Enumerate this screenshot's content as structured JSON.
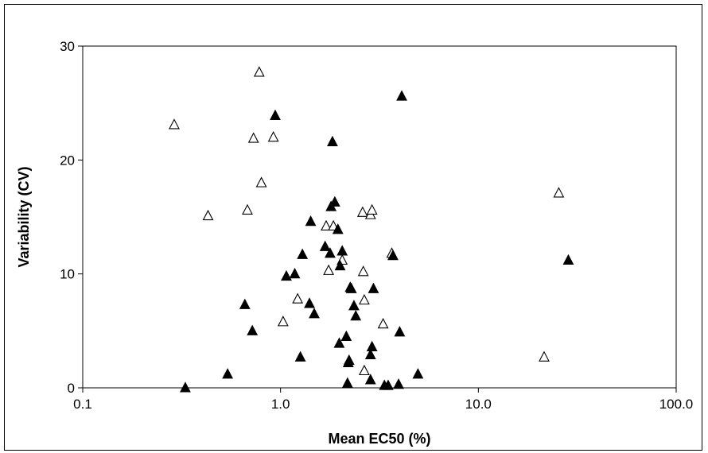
{
  "chart_data": {
    "type": "scatter",
    "title": "",
    "xlabel": "Mean EC50 (%)",
    "ylabel": "Variability (CV)",
    "x_scale": "log",
    "xlim": [
      0.1,
      100
    ],
    "ylim": [
      0,
      30
    ],
    "x_ticks": [
      "0.1",
      "1.0",
      "10.0",
      "100.0"
    ],
    "y_ticks": [
      "0",
      "10",
      "20",
      "30"
    ],
    "grid": false,
    "legend": "none",
    "series": [
      {
        "marker": "open-triangle",
        "color": "#000000",
        "points": [
          [
            0.29,
            23.1
          ],
          [
            0.43,
            15.1
          ],
          [
            0.68,
            15.6
          ],
          [
            0.73,
            21.9
          ],
          [
            0.78,
            27.7
          ],
          [
            0.8,
            18.0
          ],
          [
            0.92,
            22.0
          ],
          [
            1.03,
            5.8
          ],
          [
            1.22,
            7.8
          ],
          [
            1.7,
            14.2
          ],
          [
            1.75,
            10.3
          ],
          [
            1.85,
            14.2
          ],
          [
            2.05,
            11.2
          ],
          [
            2.6,
            15.4
          ],
          [
            2.62,
            10.2
          ],
          [
            2.65,
            7.7
          ],
          [
            2.85,
            15.2
          ],
          [
            2.9,
            15.6
          ],
          [
            3.3,
            5.6
          ],
          [
            3.65,
            11.8
          ],
          [
            2.65,
            1.5
          ],
          [
            21.5,
            2.7
          ],
          [
            25.5,
            17.1
          ]
        ]
      },
      {
        "marker": "filled-triangle",
        "color": "#000000",
        "points": [
          [
            0.33,
            0.0
          ],
          [
            0.54,
            1.2
          ],
          [
            0.66,
            7.3
          ],
          [
            0.72,
            5.0
          ],
          [
            0.94,
            23.9
          ],
          [
            1.07,
            9.8
          ],
          [
            1.18,
            10.0
          ],
          [
            1.26,
            2.7
          ],
          [
            1.29,
            11.7
          ],
          [
            1.4,
            7.4
          ],
          [
            1.42,
            14.6
          ],
          [
            1.48,
            6.5
          ],
          [
            1.68,
            12.4
          ],
          [
            1.78,
            11.8
          ],
          [
            1.8,
            15.9
          ],
          [
            1.83,
            21.6
          ],
          [
            1.88,
            16.3
          ],
          [
            1.95,
            13.9
          ],
          [
            1.98,
            3.9
          ],
          [
            2.0,
            10.7
          ],
          [
            2.05,
            12.0
          ],
          [
            2.15,
            4.5
          ],
          [
            2.18,
            0.4
          ],
          [
            2.2,
            2.2
          ],
          [
            2.22,
            2.4
          ],
          [
            2.25,
            8.8
          ],
          [
            2.28,
            8.7
          ],
          [
            2.35,
            7.2
          ],
          [
            2.4,
            6.3
          ],
          [
            2.85,
            0.7
          ],
          [
            2.85,
            2.9
          ],
          [
            2.9,
            3.6
          ],
          [
            2.95,
            8.7
          ],
          [
            3.35,
            0.2
          ],
          [
            3.5,
            0.2
          ],
          [
            3.7,
            11.6
          ],
          [
            3.95,
            0.3
          ],
          [
            4.0,
            4.9
          ],
          [
            4.1,
            25.6
          ],
          [
            4.95,
            1.2
          ],
          [
            28.5,
            11.2
          ]
        ]
      }
    ]
  }
}
